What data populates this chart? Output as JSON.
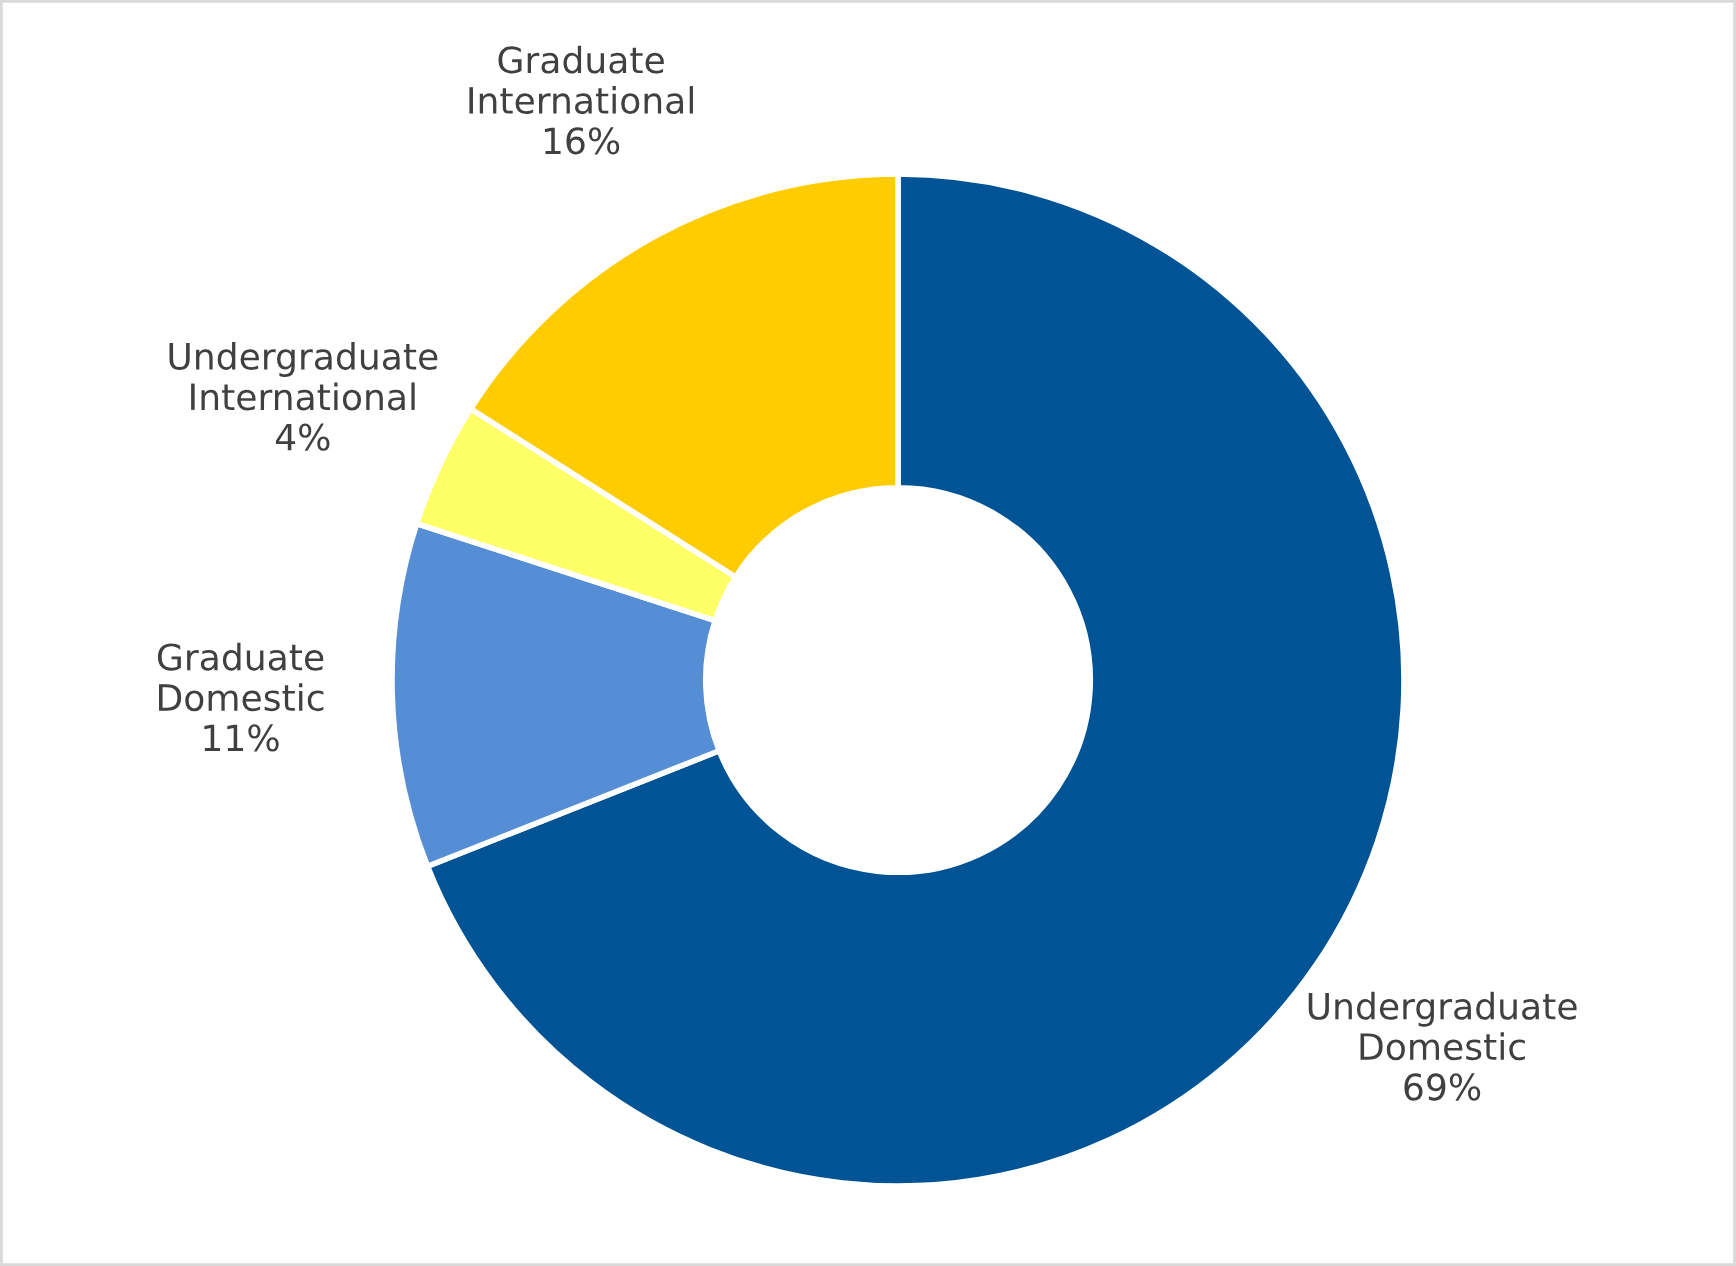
{
  "chart_data": {
    "type": "donut",
    "categories": [
      "Undergraduate Domestic",
      "Graduate Domestic",
      "Undergraduate International",
      "Graduate International"
    ],
    "values": [
      69,
      11,
      4,
      16
    ],
    "value_labels": [
      "69%",
      "11%",
      "4%",
      "16%"
    ],
    "colors": [
      "#005496",
      "#558ed5",
      "#ffff66",
      "#ffcc00"
    ],
    "legend": false
  }
}
